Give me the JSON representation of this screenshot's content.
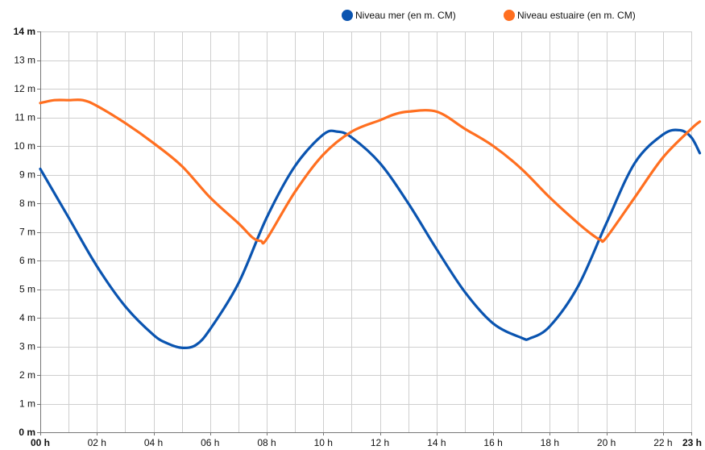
{
  "chart_data": {
    "type": "line",
    "title": "",
    "xlabel": "",
    "ylabel": "",
    "xlim": [
      0,
      23
    ],
    "ylim": [
      0,
      14
    ],
    "grid": true,
    "legend_position": "top-right",
    "x_ticks": [
      {
        "x": 0,
        "label": "00 h",
        "bold": true
      },
      {
        "x": 2,
        "label": "02 h",
        "bold": false
      },
      {
        "x": 4,
        "label": "04 h",
        "bold": false
      },
      {
        "x": 6,
        "label": "06 h",
        "bold": false
      },
      {
        "x": 8,
        "label": "08 h",
        "bold": false
      },
      {
        "x": 10,
        "label": "10 h",
        "bold": false
      },
      {
        "x": 12,
        "label": "12 h",
        "bold": false
      },
      {
        "x": 14,
        "label": "14 h",
        "bold": false
      },
      {
        "x": 16,
        "label": "16 h",
        "bold": false
      },
      {
        "x": 18,
        "label": "18 h",
        "bold": false
      },
      {
        "x": 20,
        "label": "20 h",
        "bold": false
      },
      {
        "x": 22,
        "label": "22 h",
        "bold": false
      },
      {
        "x": 23,
        "label": "23 h",
        "bold": true
      }
    ],
    "y_ticks": [
      {
        "y": 0,
        "label": "0 m",
        "bold": true
      },
      {
        "y": 1,
        "label": "1 m",
        "bold": false
      },
      {
        "y": 2,
        "label": "2 m",
        "bold": false
      },
      {
        "y": 3,
        "label": "3 m",
        "bold": false
      },
      {
        "y": 4,
        "label": "4 m",
        "bold": false
      },
      {
        "y": 5,
        "label": "5 m",
        "bold": false
      },
      {
        "y": 6,
        "label": "6 m",
        "bold": false
      },
      {
        "y": 7,
        "label": "7 m",
        "bold": false
      },
      {
        "y": 8,
        "label": "8 m",
        "bold": false
      },
      {
        "y": 9,
        "label": "9 m",
        "bold": false
      },
      {
        "y": 10,
        "label": "10 m",
        "bold": false
      },
      {
        "y": 11,
        "label": "11 m",
        "bold": false
      },
      {
        "y": 12,
        "label": "12 m",
        "bold": false
      },
      {
        "y": 13,
        "label": "13 m",
        "bold": false
      },
      {
        "y": 14,
        "label": "14 m",
        "bold": true
      }
    ],
    "series": [
      {
        "name": "Niveau mer (en m. CM)",
        "color": "#0a54b0",
        "points": [
          [
            0,
            9.2
          ],
          [
            1,
            7.5
          ],
          [
            2,
            5.8
          ],
          [
            3,
            4.4
          ],
          [
            4,
            3.4
          ],
          [
            4.5,
            3.1
          ],
          [
            5,
            2.95
          ],
          [
            5.5,
            3.05
          ],
          [
            6,
            3.6
          ],
          [
            7,
            5.2
          ],
          [
            8,
            7.5
          ],
          [
            9,
            9.3
          ],
          [
            10,
            10.4
          ],
          [
            10.5,
            10.5
          ],
          [
            11,
            10.3
          ],
          [
            12,
            9.4
          ],
          [
            13,
            8.0
          ],
          [
            14,
            6.4
          ],
          [
            15,
            4.9
          ],
          [
            16,
            3.8
          ],
          [
            17,
            3.3
          ],
          [
            17.3,
            3.28
          ],
          [
            18,
            3.7
          ],
          [
            19,
            5.1
          ],
          [
            20,
            7.3
          ],
          [
            21,
            9.4
          ],
          [
            22,
            10.4
          ],
          [
            22.6,
            10.55
          ],
          [
            23,
            10.3
          ],
          [
            23.3,
            9.75
          ]
        ]
      },
      {
        "name": "Niveau estuaire (en m. CM)",
        "color": "#ff6f20",
        "points": [
          [
            0,
            11.5
          ],
          [
            0.5,
            11.6
          ],
          [
            1,
            11.6
          ],
          [
            1.5,
            11.6
          ],
          [
            2,
            11.4
          ],
          [
            3,
            10.8
          ],
          [
            4,
            10.1
          ],
          [
            5,
            9.3
          ],
          [
            6,
            8.2
          ],
          [
            7,
            7.3
          ],
          [
            7.5,
            6.8
          ],
          [
            7.8,
            6.68
          ],
          [
            8,
            6.75
          ],
          [
            9,
            8.4
          ],
          [
            10,
            9.7
          ],
          [
            11,
            10.5
          ],
          [
            12,
            10.9
          ],
          [
            12.5,
            11.1
          ],
          [
            13,
            11.2
          ],
          [
            14,
            11.2
          ],
          [
            15,
            10.6
          ],
          [
            16,
            10.0
          ],
          [
            17,
            9.2
          ],
          [
            18,
            8.2
          ],
          [
            19,
            7.3
          ],
          [
            19.5,
            6.9
          ],
          [
            19.8,
            6.72
          ],
          [
            20,
            6.8
          ],
          [
            21,
            8.2
          ],
          [
            22,
            9.6
          ],
          [
            23,
            10.6
          ],
          [
            23.3,
            10.85
          ]
        ]
      }
    ]
  }
}
